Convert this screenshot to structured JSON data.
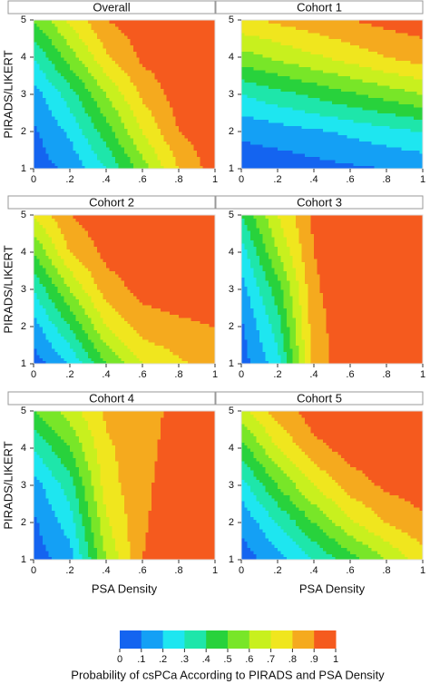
{
  "chart_data": [
    {
      "type": "contour",
      "title": "Overall",
      "ylabel": "PIRADS/LIKERT",
      "x": [
        0,
        0.2,
        0.4,
        0.6,
        0.8,
        1
      ],
      "y": [
        1,
        2,
        3,
        4,
        5
      ],
      "z": [
        [
          0.05,
          0.12,
          0.3,
          0.55,
          0.8,
          0.95
        ],
        [
          0.08,
          0.22,
          0.45,
          0.7,
          0.9,
          0.97
        ],
        [
          0.15,
          0.35,
          0.6,
          0.82,
          0.95,
          0.98
        ],
        [
          0.3,
          0.55,
          0.78,
          0.92,
          0.97,
          0.99
        ],
        [
          0.5,
          0.72,
          0.9,
          0.96,
          0.98,
          0.99
        ]
      ],
      "xlim": [
        0,
        1
      ],
      "ylim": [
        1,
        5
      ],
      "xticks": [
        0,
        {
          "value": 0.2,
          "label": ".2"
        },
        {
          "value": 0.4,
          "label": ".4"
        },
        {
          "value": 0.6,
          "label": ".6"
        },
        {
          "value": 0.8,
          "label": ".8"
        },
        1
      ],
      "yticks": [
        1,
        2,
        3,
        4,
        5
      ]
    },
    {
      "type": "contour",
      "title": "Cohort 1",
      "x": [
        0,
        0.2,
        0.4,
        0.6,
        0.8,
        1
      ],
      "y": [
        1,
        2,
        3,
        4,
        5
      ],
      "z": [
        [
          0.03,
          0.04,
          0.06,
          0.08,
          0.1,
          0.12
        ],
        [
          0.12,
          0.15,
          0.18,
          0.22,
          0.26,
          0.3
        ],
        [
          0.3,
          0.36,
          0.42,
          0.48,
          0.54,
          0.6
        ],
        [
          0.55,
          0.62,
          0.68,
          0.74,
          0.8,
          0.85
        ],
        [
          0.78,
          0.82,
          0.86,
          0.9,
          0.93,
          0.95
        ]
      ],
      "xlim": [
        0,
        1
      ],
      "ylim": [
        1,
        5
      ],
      "xticks": [
        0,
        {
          "value": 0.2,
          "label": ".2"
        },
        {
          "value": 0.4,
          "label": ".4"
        },
        {
          "value": 0.6,
          "label": ".6"
        },
        {
          "value": 0.8,
          "label": ".8"
        },
        1
      ],
      "yticks": [
        1,
        2,
        3,
        4,
        5
      ]
    },
    {
      "type": "contour",
      "title": "Cohort 2",
      "ylabel": "PIRADS/LIKERT",
      "x": [
        0,
        0.2,
        0.4,
        0.6,
        0.8,
        1
      ],
      "y": [
        1,
        2,
        3,
        4,
        5
      ],
      "z": [
        [
          0.05,
          0.2,
          0.5,
          0.7,
          0.78,
          0.85
        ],
        [
          0.15,
          0.4,
          0.7,
          0.85,
          0.88,
          0.9
        ],
        [
          0.3,
          0.6,
          0.85,
          0.93,
          0.95,
          0.96
        ],
        [
          0.5,
          0.8,
          0.93,
          0.97,
          0.98,
          0.99
        ],
        [
          0.7,
          0.9,
          0.97,
          0.99,
          0.99,
          0.99
        ]
      ],
      "xlim": [
        0,
        1
      ],
      "ylim": [
        1,
        5
      ],
      "xticks": [
        0,
        {
          "value": 0.2,
          "label": ".2"
        },
        {
          "value": 0.4,
          "label": ".4"
        },
        {
          "value": 0.6,
          "label": ".6"
        },
        {
          "value": 0.8,
          "label": ".8"
        },
        1
      ],
      "yticks": [
        1,
        2,
        3,
        4,
        5
      ]
    },
    {
      "type": "contour",
      "title": "Cohort 3",
      "x": [
        0,
        0.2,
        0.4,
        0.6,
        0.8,
        1
      ],
      "y": [
        1,
        2,
        3,
        4,
        5
      ],
      "z": [
        [
          0.05,
          0.25,
          0.85,
          0.97,
          0.98,
          0.99
        ],
        [
          0.08,
          0.35,
          0.86,
          0.97,
          0.98,
          0.99
        ],
        [
          0.15,
          0.45,
          0.88,
          0.98,
          0.99,
          0.99
        ],
        [
          0.25,
          0.6,
          0.9,
          0.98,
          0.99,
          0.99
        ],
        [
          0.4,
          0.7,
          0.92,
          0.98,
          0.99,
          0.99
        ]
      ],
      "xlim": [
        0,
        1
      ],
      "ylim": [
        1,
        5
      ],
      "xticks": [
        0,
        {
          "value": 0.2,
          "label": ".2"
        },
        {
          "value": 0.4,
          "label": ".4"
        },
        {
          "value": 0.6,
          "label": ".6"
        },
        {
          "value": 0.8,
          "label": ".8"
        },
        1
      ],
      "yticks": [
        1,
        2,
        3,
        4,
        5
      ]
    },
    {
      "type": "contour",
      "title": "Cohort 4",
      "ylabel": "PIRADS/LIKERT",
      "xlabel": "PSA Density",
      "x": [
        0,
        0.2,
        0.4,
        0.6,
        0.8,
        1
      ],
      "y": [
        1,
        2,
        3,
        4,
        5
      ],
      "z": [
        [
          0.05,
          0.15,
          0.6,
          0.9,
          0.95,
          0.97
        ],
        [
          0.08,
          0.25,
          0.68,
          0.89,
          0.95,
          0.97
        ],
        [
          0.15,
          0.35,
          0.75,
          0.88,
          0.95,
          0.97
        ],
        [
          0.3,
          0.5,
          0.78,
          0.87,
          0.94,
          0.97
        ],
        [
          0.5,
          0.65,
          0.82,
          0.86,
          0.93,
          0.97
        ]
      ],
      "xlim": [
        0,
        1
      ],
      "ylim": [
        1,
        5
      ],
      "xticks": [
        0,
        {
          "value": 0.2,
          "label": ".2"
        },
        {
          "value": 0.4,
          "label": ".4"
        },
        {
          "value": 0.6,
          "label": ".6"
        },
        {
          "value": 0.8,
          "label": ".8"
        },
        1
      ],
      "yticks": [
        1,
        2,
        3,
        4,
        5
      ]
    },
    {
      "type": "contour",
      "title": "Cohort 5",
      "xlabel": "PSA Density",
      "x": [
        0,
        0.2,
        0.4,
        0.6,
        0.8,
        1
      ],
      "y": [
        1,
        2,
        3,
        4,
        5
      ],
      "z": [
        [
          0.05,
          0.15,
          0.3,
          0.45,
          0.6,
          0.75
        ],
        [
          0.12,
          0.3,
          0.5,
          0.68,
          0.8,
          0.88
        ],
        [
          0.25,
          0.5,
          0.7,
          0.85,
          0.92,
          0.95
        ],
        [
          0.45,
          0.7,
          0.87,
          0.94,
          0.97,
          0.98
        ],
        [
          0.65,
          0.85,
          0.95,
          0.98,
          0.99,
          0.99
        ]
      ],
      "xlim": [
        0,
        1
      ],
      "ylim": [
        1,
        5
      ],
      "xticks": [
        0,
        {
          "value": 0.2,
          "label": ".2"
        },
        {
          "value": 0.4,
          "label": ".4"
        },
        {
          "value": 0.6,
          "label": ".6"
        },
        {
          "value": 0.8,
          "label": ".8"
        },
        1
      ],
      "yticks": [
        1,
        2,
        3,
        4,
        5
      ]
    }
  ],
  "colorbar": {
    "label": "Probability of csPCa According to PIRADS and PSA Density",
    "levels": [
      0,
      {
        "value": 0.1,
        "label": ".1"
      },
      {
        "value": 0.2,
        "label": ".2"
      },
      {
        "value": 0.3,
        "label": ".3"
      },
      {
        "value": 0.4,
        "label": ".4"
      },
      {
        "value": 0.5,
        "label": ".5"
      },
      {
        "value": 0.6,
        "label": ".6"
      },
      {
        "value": 0.7,
        "label": ".7"
      },
      {
        "value": 0.8,
        "label": ".8"
      },
      {
        "value": 0.9,
        "label": ".9"
      },
      1
    ],
    "colors": [
      "#1464f0",
      "#14a0f5",
      "#1ee6f0",
      "#1ee6aa",
      "#28d23c",
      "#78e628",
      "#c8f01e",
      "#f0e61e",
      "#f5aa1e",
      "#f55a1e"
    ]
  }
}
